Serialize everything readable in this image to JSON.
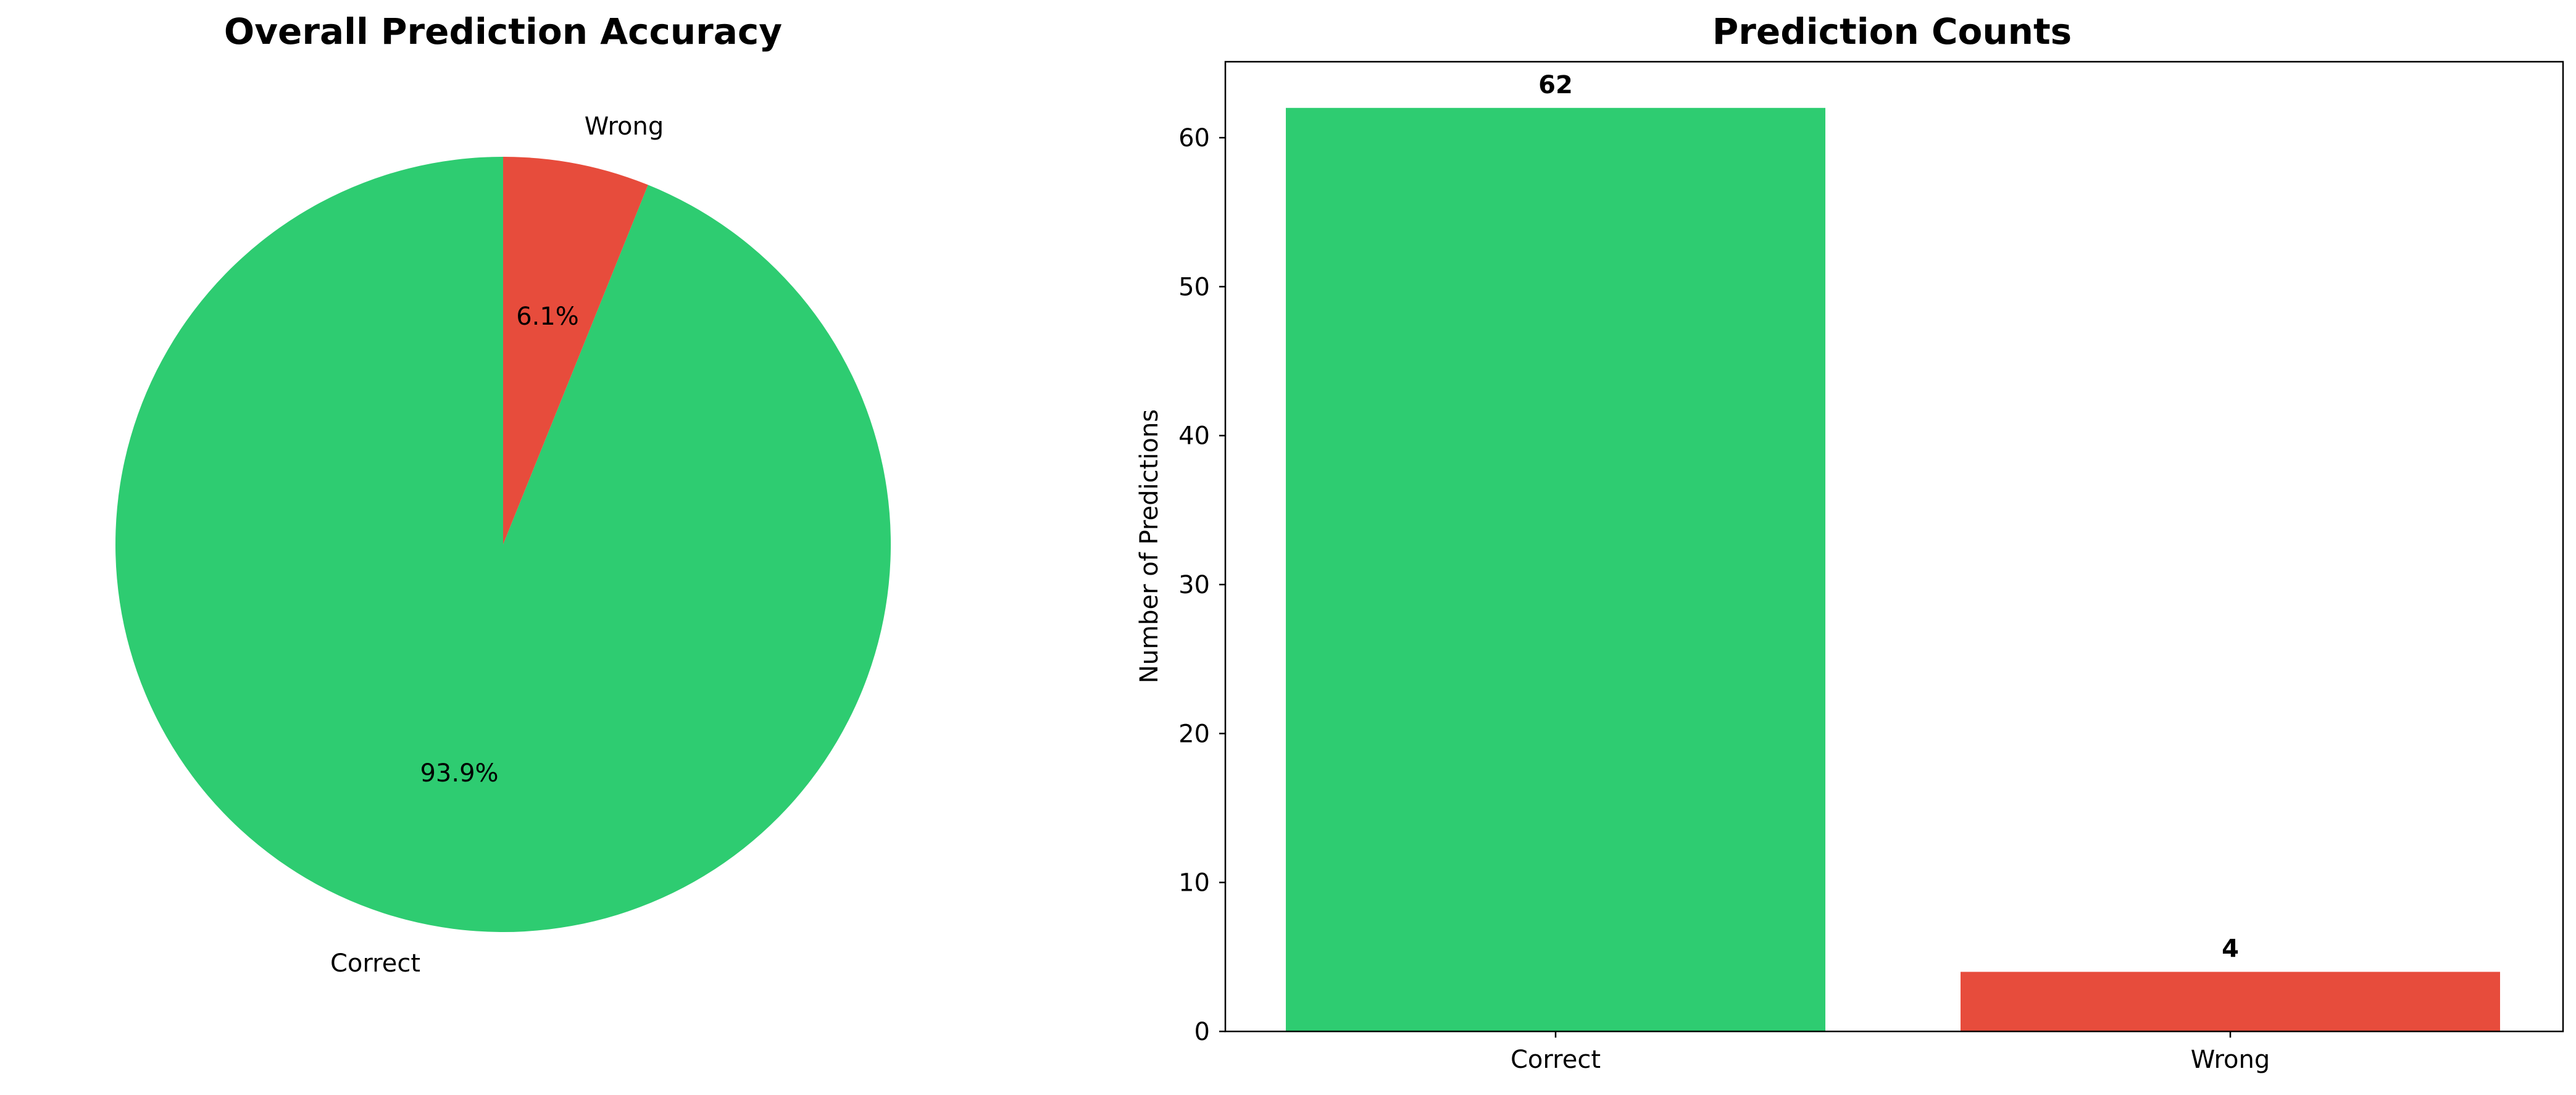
{
  "colors": {
    "correct": "#2ecc71",
    "wrong": "#e74c3c",
    "axis": "#000000"
  },
  "chart_data": [
    {
      "type": "pie",
      "title": "Overall Prediction Accuracy",
      "labels": [
        "Correct",
        "Wrong"
      ],
      "values": [
        93.9,
        6.1
      ],
      "pct_labels": [
        "93.9%",
        "6.1%"
      ],
      "colors": [
        "#2ecc71",
        "#e74c3c"
      ],
      "start_angle": "90°",
      "direction": "counterclockwise"
    },
    {
      "type": "bar",
      "title": "Prediction Counts",
      "categories": [
        "Correct",
        "Wrong"
      ],
      "values": [
        62,
        4
      ],
      "value_labels": [
        "62",
        "4"
      ],
      "colors": [
        "#2ecc71",
        "#e74c3c"
      ],
      "xlabel": "",
      "ylabel": "Number of Predictions",
      "ylim": [
        0,
        65.1
      ],
      "yticks": [
        0,
        10,
        20,
        30,
        40,
        50,
        60
      ],
      "grid": false
    }
  ]
}
